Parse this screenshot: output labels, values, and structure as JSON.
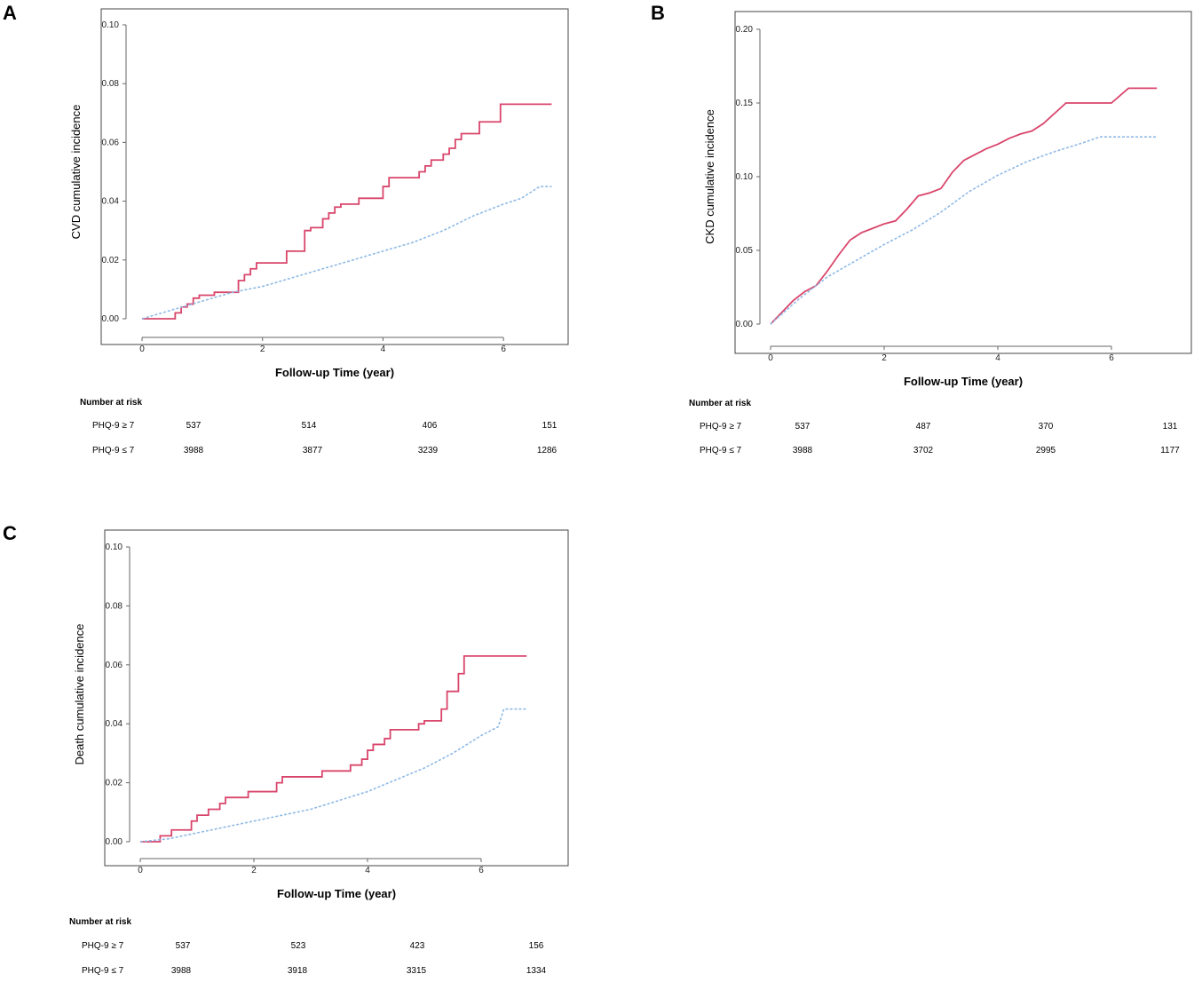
{
  "colors": {
    "exposed": "#d9456b",
    "reference": "#8fb9e6",
    "frame": "#444444"
  },
  "chart_data": [
    {
      "type": "line",
      "panel": "A",
      "title": "",
      "xlabel": "Follow-up Time (year)",
      "ylabel": "CVD cumulative incidence",
      "xlim": [
        0,
        7
      ],
      "ylim": [
        0,
        0.1
      ],
      "xticks": [
        {
          "v": 0,
          "label": "0"
        },
        {
          "v": 2,
          "label": "2"
        },
        {
          "v": 4,
          "label": "4"
        },
        {
          "v": 6,
          "label": "6"
        }
      ],
      "yticks": [
        {
          "v": 0,
          "label": "0.00"
        },
        {
          "v": 0.02,
          "label": "0.02"
        },
        {
          "v": 0.04,
          "label": "0.04"
        },
        {
          "v": 0.06,
          "label": "0.06"
        },
        {
          "v": 0.08,
          "label": "0.08"
        },
        {
          "v": 0.1,
          "label": "0.10"
        }
      ],
      "series": [
        {
          "name": "PHQ-9 ≥ 7",
          "style": "solid",
          "step": true,
          "x": [
            0,
            0.55,
            0.65,
            0.75,
            0.85,
            0.95,
            1.0,
            1.2,
            1.3,
            1.6,
            1.7,
            1.8,
            1.9,
            2.0,
            2.4,
            2.7,
            2.8,
            3.0,
            3.1,
            3.2,
            3.3,
            3.5,
            3.6,
            4.0,
            4.1,
            4.6,
            4.7,
            4.8,
            5.0,
            5.1,
            5.2,
            5.3,
            5.35,
            5.6,
            5.95,
            6.8
          ],
          "y": [
            0,
            0.002,
            0.004,
            0.005,
            0.007,
            0.008,
            0.008,
            0.009,
            0.009,
            0.013,
            0.015,
            0.017,
            0.019,
            0.019,
            0.023,
            0.03,
            0.031,
            0.034,
            0.036,
            0.038,
            0.039,
            0.039,
            0.041,
            0.045,
            0.048,
            0.05,
            0.052,
            0.054,
            0.056,
            0.058,
            0.061,
            0.063,
            0.063,
            0.067,
            0.073,
            0.073
          ]
        },
        {
          "name": "PHQ-9 ≤ 7",
          "style": "dashed",
          "step": false,
          "x": [
            0,
            0.5,
            1.0,
            1.5,
            2.0,
            2.5,
            3.0,
            3.5,
            4.0,
            4.5,
            5.0,
            5.5,
            6.0,
            6.3,
            6.6,
            6.8
          ],
          "y": [
            0,
            0.003,
            0.006,
            0.009,
            0.011,
            0.014,
            0.017,
            0.02,
            0.023,
            0.026,
            0.03,
            0.035,
            0.039,
            0.041,
            0.045,
            0.045
          ]
        }
      ],
      "risk_table": {
        "title": "Number at risk",
        "rows": [
          {
            "label": "PHQ-9 ≥ 7",
            "values": [
              "537",
              "514",
              "406",
              "151"
            ]
          },
          {
            "label": "PHQ-9 ≤ 7",
            "values": [
              "3988",
              "3877",
              "3239",
              "1286"
            ]
          }
        ]
      }
    },
    {
      "type": "line",
      "panel": "B",
      "title": "",
      "xlabel": "Follow-up Time (year)",
      "ylabel": "CKD cumulative incidence",
      "xlim": [
        0,
        7
      ],
      "ylim": [
        0,
        0.2
      ],
      "xticks": [
        {
          "v": 0,
          "label": "0"
        },
        {
          "v": 2,
          "label": "2"
        },
        {
          "v": 4,
          "label": "4"
        },
        {
          "v": 6,
          "label": "6"
        }
      ],
      "yticks": [
        {
          "v": 0,
          "label": "0.00"
        },
        {
          "v": 0.05,
          "label": "0.05"
        },
        {
          "v": 0.1,
          "label": "0.10"
        },
        {
          "v": 0.15,
          "label": "0.15"
        },
        {
          "v": 0.2,
          "label": "0.20"
        }
      ],
      "series": [
        {
          "name": "PHQ-9 ≥ 7",
          "style": "solid",
          "step": false,
          "x": [
            0,
            0.2,
            0.4,
            0.6,
            0.8,
            1.0,
            1.2,
            1.4,
            1.6,
            1.8,
            2.0,
            2.2,
            2.4,
            2.6,
            2.8,
            3.0,
            3.2,
            3.4,
            3.6,
            3.8,
            4.0,
            4.2,
            4.4,
            4.6,
            4.8,
            5.0,
            5.2,
            5.6,
            6.0,
            6.3,
            6.8
          ],
          "y": [
            0,
            0.008,
            0.016,
            0.022,
            0.026,
            0.036,
            0.047,
            0.057,
            0.062,
            0.065,
            0.068,
            0.07,
            0.078,
            0.087,
            0.089,
            0.092,
            0.103,
            0.111,
            0.115,
            0.119,
            0.122,
            0.126,
            0.129,
            0.131,
            0.136,
            0.143,
            0.15,
            0.15,
            0.15,
            0.16,
            0.16
          ]
        },
        {
          "name": "PHQ-9 ≤ 7",
          "style": "dashed",
          "step": false,
          "x": [
            0,
            0.5,
            1.0,
            1.5,
            2.0,
            2.5,
            3.0,
            3.5,
            4.0,
            4.5,
            5.0,
            5.5,
            5.8,
            6.3,
            6.8
          ],
          "y": [
            0,
            0.017,
            0.032,
            0.043,
            0.054,
            0.064,
            0.076,
            0.09,
            0.101,
            0.11,
            0.117,
            0.123,
            0.127,
            0.127,
            0.127
          ]
        }
      ],
      "risk_table": {
        "title": "Number at risk",
        "rows": [
          {
            "label": "PHQ-9 ≥ 7",
            "values": [
              "537",
              "487",
              "370",
              "131"
            ]
          },
          {
            "label": "PHQ-9 ≤ 7",
            "values": [
              "3988",
              "3702",
              "2995",
              "1177"
            ]
          }
        ]
      }
    },
    {
      "type": "line",
      "panel": "C",
      "title": "",
      "xlabel": "Follow-up Time (year)",
      "ylabel": "Death cumulative incidence",
      "xlim": [
        0,
        7
      ],
      "ylim": [
        0,
        0.1
      ],
      "xticks": [
        {
          "v": 0,
          "label": "0"
        },
        {
          "v": 2,
          "label": "2"
        },
        {
          "v": 4,
          "label": "4"
        },
        {
          "v": 6,
          "label": "6"
        }
      ],
      "yticks": [
        {
          "v": 0,
          "label": "0.00"
        },
        {
          "v": 0.02,
          "label": "0.02"
        },
        {
          "v": 0.04,
          "label": "0.04"
        },
        {
          "v": 0.06,
          "label": "0.06"
        },
        {
          "v": 0.08,
          "label": "0.08"
        },
        {
          "v": 0.1,
          "label": "0.10"
        }
      ],
      "series": [
        {
          "name": "PHQ-9 ≥ 7",
          "style": "solid",
          "step": true,
          "x": [
            0,
            0.35,
            0.55,
            0.9,
            1.0,
            1.2,
            1.4,
            1.5,
            1.9,
            2.4,
            2.5,
            3.2,
            3.7,
            3.9,
            4.0,
            4.1,
            4.3,
            4.4,
            4.7,
            4.9,
            5.0,
            5.2,
            5.3,
            5.4,
            5.6,
            5.7,
            6.8
          ],
          "y": [
            0,
            0.002,
            0.004,
            0.007,
            0.009,
            0.011,
            0.013,
            0.015,
            0.017,
            0.02,
            0.022,
            0.024,
            0.026,
            0.028,
            0.031,
            0.033,
            0.035,
            0.038,
            0.038,
            0.04,
            0.041,
            0.041,
            0.045,
            0.051,
            0.057,
            0.063,
            0.063
          ]
        },
        {
          "name": "PHQ-9 ≤ 7",
          "style": "dashed",
          "step": false,
          "x": [
            0,
            0.5,
            1.0,
            1.5,
            2.0,
            2.5,
            3.0,
            3.5,
            4.0,
            4.5,
            5.0,
            5.5,
            6.0,
            6.3,
            6.4,
            6.8
          ],
          "y": [
            0,
            0.001,
            0.003,
            0.005,
            0.007,
            0.009,
            0.011,
            0.014,
            0.017,
            0.021,
            0.025,
            0.03,
            0.036,
            0.039,
            0.045,
            0.045
          ]
        }
      ],
      "risk_table": {
        "title": "Number at risk",
        "rows": [
          {
            "label": "PHQ-9 ≥ 7",
            "values": [
              "537",
              "523",
              "423",
              "156"
            ]
          },
          {
            "label": "PHQ-9 ≤ 7",
            "values": [
              "3988",
              "3918",
              "3315",
              "1334"
            ]
          }
        ]
      }
    }
  ]
}
